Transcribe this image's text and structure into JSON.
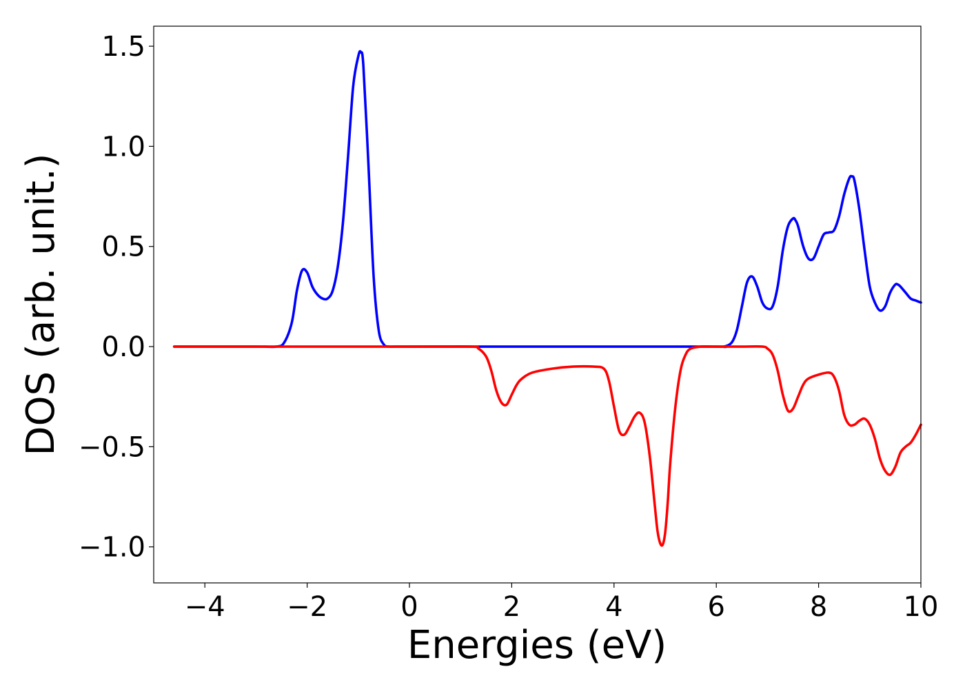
{
  "chart_data": {
    "type": "line",
    "title": "",
    "xlabel": "Energies (eV)",
    "ylabel": "DOS (arb. unit.)",
    "xlim": [
      -5.0,
      10.0
    ],
    "ylim": [
      -1.18,
      1.6
    ],
    "grid": false,
    "legend": "none",
    "x_ticks": [
      -4,
      -2,
      0,
      2,
      4,
      6,
      8,
      10
    ],
    "x_tick_labels": [
      "−4",
      "−2",
      "0",
      "2",
      "4",
      "6",
      "8",
      "10"
    ],
    "y_ticks": [
      -1.0,
      -0.5,
      0.0,
      0.5,
      1.0,
      1.5
    ],
    "y_tick_labels": [
      "−1.0",
      "−0.5",
      "0.0",
      "0.5",
      "1.0",
      "1.5"
    ],
    "series": [
      {
        "color": "#0000ff",
        "x": [
          -4.6,
          -3.0,
          -2.6,
          -2.45,
          -2.3,
          -2.2,
          -2.1,
          -2.0,
          -1.9,
          -1.8,
          -1.7,
          -1.6,
          -1.5,
          -1.4,
          -1.3,
          -1.2,
          -1.1,
          -1.0,
          -0.95,
          -0.9,
          -0.8,
          -0.7,
          -0.6,
          -0.5,
          -0.4,
          -0.3,
          0.0,
          2.0,
          4.0,
          6.0,
          6.15,
          6.3,
          6.4,
          6.5,
          6.6,
          6.7,
          6.8,
          6.9,
          7.0,
          7.1,
          7.2,
          7.3,
          7.4,
          7.5,
          7.55,
          7.6,
          7.7,
          7.8,
          7.9,
          8.0,
          8.1,
          8.2,
          8.3,
          8.4,
          8.5,
          8.6,
          8.65,
          8.7,
          8.8,
          8.9,
          9.0,
          9.1,
          9.2,
          9.3,
          9.4,
          9.5,
          9.55,
          9.6,
          9.7,
          9.8,
          9.9,
          10.0
        ],
        "y": [
          0.0,
          0.0,
          0.0,
          0.02,
          0.12,
          0.28,
          0.38,
          0.37,
          0.3,
          0.26,
          0.24,
          0.24,
          0.28,
          0.4,
          0.62,
          0.95,
          1.3,
          1.45,
          1.47,
          1.4,
          0.9,
          0.35,
          0.08,
          0.01,
          0.0,
          0.0,
          0.0,
          0.0,
          0.0,
          0.0,
          0.0,
          0.02,
          0.08,
          0.2,
          0.32,
          0.35,
          0.3,
          0.22,
          0.19,
          0.2,
          0.3,
          0.48,
          0.6,
          0.64,
          0.63,
          0.6,
          0.5,
          0.44,
          0.44,
          0.5,
          0.56,
          0.57,
          0.58,
          0.65,
          0.76,
          0.84,
          0.85,
          0.83,
          0.68,
          0.48,
          0.3,
          0.22,
          0.18,
          0.2,
          0.27,
          0.31,
          0.31,
          0.3,
          0.27,
          0.24,
          0.23,
          0.22
        ]
      },
      {
        "color": "#ff0000",
        "x": [
          -4.6,
          0.0,
          1.2,
          1.35,
          1.5,
          1.6,
          1.7,
          1.8,
          1.9,
          2.0,
          2.1,
          2.2,
          2.4,
          2.8,
          3.2,
          3.6,
          3.8,
          3.9,
          4.0,
          4.1,
          4.2,
          4.3,
          4.4,
          4.5,
          4.6,
          4.7,
          4.8,
          4.85,
          4.9,
          4.95,
          5.0,
          5.05,
          5.1,
          5.2,
          5.3,
          5.4,
          5.5,
          5.7,
          6.0,
          6.5,
          6.9,
          7.0,
          7.1,
          7.2,
          7.3,
          7.4,
          7.5,
          7.6,
          7.7,
          7.8,
          8.0,
          8.2,
          8.3,
          8.4,
          8.5,
          8.6,
          8.7,
          8.8,
          8.9,
          9.0,
          9.1,
          9.2,
          9.3,
          9.4,
          9.5,
          9.6,
          9.7,
          9.8,
          9.9,
          10.0
        ],
        "y": [
          0.0,
          0.0,
          0.0,
          -0.01,
          -0.05,
          -0.12,
          -0.22,
          -0.28,
          -0.29,
          -0.24,
          -0.19,
          -0.16,
          -0.13,
          -0.11,
          -0.1,
          -0.1,
          -0.11,
          -0.17,
          -0.3,
          -0.42,
          -0.44,
          -0.4,
          -0.35,
          -0.33,
          -0.38,
          -0.55,
          -0.8,
          -0.92,
          -0.98,
          -0.99,
          -0.93,
          -0.78,
          -0.58,
          -0.3,
          -0.12,
          -0.04,
          -0.01,
          0.0,
          0.0,
          0.0,
          0.0,
          -0.01,
          -0.04,
          -0.12,
          -0.24,
          -0.32,
          -0.31,
          -0.25,
          -0.19,
          -0.16,
          -0.14,
          -0.13,
          -0.15,
          -0.22,
          -0.34,
          -0.39,
          -0.39,
          -0.37,
          -0.36,
          -0.39,
          -0.46,
          -0.56,
          -0.62,
          -0.64,
          -0.6,
          -0.53,
          -0.5,
          -0.48,
          -0.44,
          -0.39
        ]
      }
    ]
  }
}
